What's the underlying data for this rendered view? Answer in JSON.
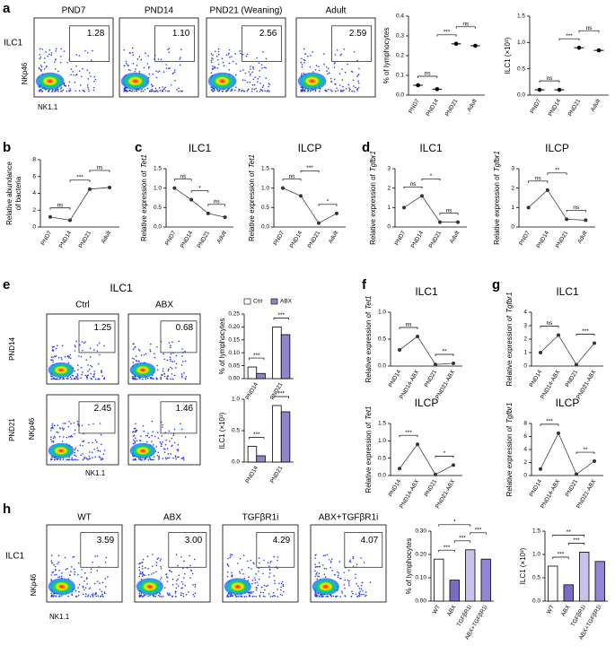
{
  "a": {
    "letter": "a",
    "gate_name": "ILC1",
    "y_marker": "NKp46",
    "x_marker": "NK1.1",
    "flows": [
      {
        "title": "PND7",
        "gate": "1.28"
      },
      {
        "title": "PND14",
        "gate": "1.10"
      },
      {
        "title": "PND21 (Weaning)",
        "gate": "2.56"
      },
      {
        "title": "Adult",
        "gate": "2.59"
      }
    ],
    "charts": [
      {
        "type": "dot",
        "ylabel": [
          "% of lymphocytes"
        ],
        "categories": [
          "PND7",
          "PND14",
          "PND21",
          "Adult"
        ],
        "values": [
          0.05,
          0.03,
          0.26,
          0.25
        ],
        "ylim": [
          0,
          0.4
        ],
        "yticks": [
          {
            "value": 0,
            "label": "0.0"
          },
          {
            "value": 0.1,
            "label": "0.1"
          },
          {
            "value": 0.2,
            "label": "0.2"
          },
          {
            "value": 0.3,
            "label": "0.3"
          },
          {
            "value": 0.4,
            "label": "0.4"
          }
        ],
        "sig": [
          {
            "from": 0,
            "to": 1,
            "label": "ns"
          },
          {
            "from": 1,
            "to": 2,
            "label": "***"
          },
          {
            "from": 2,
            "to": 3,
            "label": "ns"
          }
        ]
      },
      {
        "type": "dot",
        "ylabel": [
          "ILC1 (×10³)"
        ],
        "categories": [
          "PND7",
          "PND14",
          "PND21",
          "Adult"
        ],
        "values": [
          0.1,
          0.1,
          0.9,
          0.85
        ],
        "ylim": [
          0,
          1.5
        ],
        "yticks": [
          {
            "value": 0,
            "label": "0.0"
          },
          {
            "value": 0.5,
            "label": "0.5"
          },
          {
            "value": 1,
            "label": "1.0"
          },
          {
            "value": 1.5,
            "label": "1.5"
          }
        ],
        "sig": [
          {
            "from": 0,
            "to": 1,
            "label": "ns"
          },
          {
            "from": 1,
            "to": 2,
            "label": "***"
          },
          {
            "from": 2,
            "to": 3,
            "label": "ns"
          }
        ]
      }
    ]
  },
  "b": {
    "letter": "b",
    "charts": [
      {
        "type": "line",
        "ylabel": [
          "Relative abundance",
          "of bacteria"
        ],
        "categories": [
          "PND7",
          "PND14",
          "PND21",
          "Adult"
        ],
        "values": [
          1.2,
          0.8,
          4.5,
          4.7
        ],
        "ylim": [
          0,
          8
        ],
        "yticks": [
          0,
          2,
          4,
          6,
          8
        ],
        "sig": [
          {
            "from": 0,
            "to": 1,
            "label": "ns"
          },
          {
            "from": 1,
            "to": 2,
            "label": "***"
          },
          {
            "from": 2,
            "to": 3,
            "label": "ns"
          }
        ]
      }
    ]
  },
  "c": {
    "letter": "c",
    "charts": [
      {
        "type": "line",
        "title": "ILC1",
        "ylabel": [
          "Relative expression of"
        ],
        "gene": "Tet1",
        "categories": [
          "PND7",
          "PND14",
          "PND21",
          "Adult"
        ],
        "values": [
          1.0,
          0.7,
          0.35,
          0.25
        ],
        "ylim": [
          0,
          1.5
        ],
        "yticks": [
          {
            "value": 0,
            "label": "0.0"
          },
          {
            "value": 0.5,
            "label": "0.5"
          },
          {
            "value": 1,
            "label": "1.0"
          },
          {
            "value": 1.5,
            "label": "1.5"
          }
        ],
        "sig": [
          {
            "from": 0,
            "to": 1,
            "label": "ns"
          },
          {
            "from": 1,
            "to": 2,
            "label": "*"
          },
          {
            "from": 2,
            "to": 3,
            "label": "ns"
          }
        ]
      },
      {
        "type": "line",
        "title": "ILCP",
        "ylabel": [
          "Relative expression of"
        ],
        "gene": "Tet1",
        "categories": [
          "PND7",
          "PND14",
          "PND21",
          "Adult"
        ],
        "values": [
          1.0,
          0.8,
          0.1,
          0.35
        ],
        "ylim": [
          0,
          1.5
        ],
        "yticks": [
          {
            "value": 0,
            "label": "0.0"
          },
          {
            "value": 0.5,
            "label": "0.5"
          },
          {
            "value": 1,
            "label": "1.0"
          },
          {
            "value": 1.5,
            "label": "1.5"
          }
        ],
        "sig": [
          {
            "from": 0,
            "to": 1,
            "label": "ns"
          },
          {
            "from": 1,
            "to": 2,
            "label": "***"
          },
          {
            "from": 2,
            "to": 3,
            "label": "*"
          }
        ]
      }
    ]
  },
  "d": {
    "letter": "d",
    "charts": [
      {
        "type": "line",
        "title": "ILC1",
        "ylabel": [
          "Relative expression of"
        ],
        "gene": "Tgfbr1",
        "categories": [
          "PND7",
          "PND14",
          "PND21",
          "Adult"
        ],
        "values": [
          1.0,
          1.6,
          0.25,
          0.25
        ],
        "ylim": [
          0,
          3
        ],
        "yticks": [
          0,
          1,
          2,
          3
        ],
        "sig": [
          {
            "from": 0,
            "to": 1,
            "label": "ns"
          },
          {
            "from": 1,
            "to": 2,
            "label": "*"
          },
          {
            "from": 2,
            "to": 3,
            "label": "ns"
          }
        ]
      },
      {
        "type": "line",
        "title": "ILCP",
        "ylabel": [
          "Relative expression of"
        ],
        "gene": "Tgfbr1",
        "categories": [
          "PND7",
          "PND14",
          "PND21",
          "Adult"
        ],
        "values": [
          1.0,
          1.9,
          0.4,
          0.35
        ],
        "ylim": [
          0,
          3
        ],
        "yticks": [
          0,
          1,
          2,
          3
        ],
        "sig": [
          {
            "from": 0,
            "to": 1,
            "label": "ns"
          },
          {
            "from": 1,
            "to": 2,
            "label": "**"
          },
          {
            "from": 2,
            "to": 3,
            "label": "ns"
          }
        ]
      }
    ]
  },
  "e": {
    "letter": "e",
    "title": "ILC1",
    "columns": [
      "Ctrl",
      "ABX"
    ],
    "rows": [
      "PND14",
      "PND21"
    ],
    "y_marker": "NKp46",
    "x_marker": "NK1.1",
    "gates": [
      [
        "1.25",
        "0.68"
      ],
      [
        "2.45",
        "1.46"
      ]
    ],
    "charts": [
      {
        "type": "grouped_bar",
        "legend": "top",
        "ylabel": [
          "% of lymphocytes"
        ],
        "categories": [
          "PND14",
          "PND21"
        ],
        "series": [
          {
            "name": "Ctrl",
            "color": "#ffffff",
            "values": [
              0.045,
              0.2
            ]
          },
          {
            "name": "ABX",
            "color": "#8e86c9",
            "values": [
              0.02,
              0.17
            ]
          }
        ],
        "ylim": [
          0,
          0.25
        ],
        "yticks": [
          {
            "value": 0,
            "label": "0.00"
          },
          {
            "value": 0.05,
            "label": "0.05"
          },
          {
            "value": 0.1,
            "label": "0.10"
          },
          {
            "value": 0.15,
            "label": "0.15"
          },
          {
            "value": 0.2,
            "label": "0.20"
          },
          {
            "value": 0.25,
            "label": "0.25"
          }
        ],
        "sig": [
          {
            "at": 0,
            "label": "***"
          },
          {
            "at": 1,
            "label": "***"
          }
        ]
      },
      {
        "type": "grouped_bar",
        "ylabel": [
          "ILC1 (×10³)"
        ],
        "categories": [
          "PND14",
          "PND21"
        ],
        "series": [
          {
            "name": "Ctrl",
            "color": "#ffffff",
            "values": [
              0.25,
              0.9
            ]
          },
          {
            "name": "ABX",
            "color": "#8e86c9",
            "values": [
              0.1,
              0.8
            ]
          }
        ],
        "ylim": [
          0,
          1
        ],
        "yticks": [
          {
            "value": 0,
            "label": "0.0"
          },
          {
            "value": 0.5,
            "label": "0.5"
          },
          {
            "value": 1,
            "label": "1.0"
          }
        ],
        "sig": [
          {
            "at": 0,
            "label": "***"
          },
          {
            "at": 1,
            "label": "***"
          }
        ]
      }
    ]
  },
  "f": {
    "letter": "f",
    "charts": [
      {
        "type": "line",
        "title": "ILC1",
        "ylabel": [
          "Relative expression of"
        ],
        "gene": "Tet1",
        "categories": [
          "PND14",
          "PND14-ABX",
          "PND21",
          "PND21-ABX"
        ],
        "values": [
          0.3,
          0.55,
          0.03,
          0.05
        ],
        "ylim": [
          0,
          1
        ],
        "yticks": [
          {
            "value": 0,
            "label": "0.0"
          },
          {
            "value": 0.5,
            "label": "0.5"
          },
          {
            "value": 1,
            "label": "1.0"
          }
        ],
        "sig": [
          {
            "from": 0,
            "to": 1,
            "label": "ns"
          },
          {
            "from": 2,
            "to": 3,
            "label": "**"
          }
        ]
      },
      {
        "type": "line",
        "title": "ILCP",
        "ylabel": [
          "Relative expression of"
        ],
        "gene": "Tet1",
        "categories": [
          "PND14",
          "PND14-ABX",
          "PND21",
          "PND21-ABX"
        ],
        "values": [
          0.2,
          0.9,
          0.03,
          0.3
        ],
        "ylim": [
          0,
          1.5
        ],
        "yticks": [
          {
            "value": 0,
            "label": "0.0"
          },
          {
            "value": 0.5,
            "label": "0.5"
          },
          {
            "value": 1,
            "label": "1.0"
          },
          {
            "value": 1.5,
            "label": "1.5"
          }
        ],
        "sig": [
          {
            "from": 0,
            "to": 1,
            "label": "***"
          },
          {
            "from": 2,
            "to": 3,
            "label": "*"
          }
        ]
      }
    ]
  },
  "g": {
    "letter": "g",
    "charts": [
      {
        "type": "line",
        "title": "ILC1",
        "ylabel": [
          "Relative expression of"
        ],
        "gene": "Tgfbr1",
        "categories": [
          "PND14",
          "PND14-ABX",
          "PND21",
          "PND21-ABX"
        ],
        "values": [
          1.0,
          2.3,
          0.1,
          1.7
        ],
        "ylim": [
          0,
          4
        ],
        "yticks": [
          0,
          1,
          2,
          3,
          4
        ],
        "sig": [
          {
            "from": 0,
            "to": 1,
            "label": "ns"
          },
          {
            "from": 2,
            "to": 3,
            "label": "***"
          }
        ]
      },
      {
        "type": "line",
        "title": "ILCP",
        "ylabel": [
          "Relative expression of"
        ],
        "gene": "Tgfbr1",
        "categories": [
          "PND14",
          "PND14-ABX",
          "PND21",
          "PND21-ABX"
        ],
        "values": [
          1.0,
          6.5,
          0.2,
          2.2
        ],
        "ylim": [
          0,
          8
        ],
        "yticks": [
          0,
          2,
          4,
          6,
          8
        ],
        "sig": [
          {
            "from": 0,
            "to": 1,
            "label": "***"
          },
          {
            "from": 2,
            "to": 3,
            "label": "**"
          }
        ]
      }
    ]
  },
  "h": {
    "letter": "h",
    "gate_name": "ILC1",
    "y_marker": "NKp46",
    "x_marker": "NK1.1",
    "flows": [
      {
        "title": "WT",
        "gate": "3.59"
      },
      {
        "title": "ABX",
        "gate": "3.00"
      },
      {
        "title": "TGFβR1i",
        "gate": "4.29"
      },
      {
        "title": "ABX+TGFβR1i",
        "gate": "4.07"
      }
    ],
    "charts": [
      {
        "type": "bar",
        "ylabel": [
          "% of lymphocytes"
        ],
        "categories": [
          "WT",
          "ABX",
          "TGFβR1i",
          "ABX+TGFβR1i"
        ],
        "values": [
          0.18,
          0.09,
          0.22,
          0.18
        ],
        "colors": [
          "#ffffff",
          "#7a6cc6",
          "#c9c3ec",
          "#9486d6"
        ],
        "ylim": [
          0,
          0.3
        ],
        "yticks": [
          {
            "value": 0,
            "label": "0.00"
          },
          {
            "value": 0.1,
            "label": "0.10"
          },
          {
            "value": 0.2,
            "label": "0.20"
          },
          {
            "value": 0.3,
            "label": "0.30"
          }
        ],
        "sig": [
          {
            "from": 0,
            "to": 1,
            "label": "***"
          },
          {
            "from": 1,
            "to": 2,
            "label": "***"
          },
          {
            "from": 2,
            "to": 3,
            "label": "***"
          },
          {
            "from": 0,
            "to": 2,
            "label": "*"
          }
        ]
      },
      {
        "type": "bar",
        "ylabel": [
          "ILC1 (×10³)"
        ],
        "categories": [
          "WT",
          "ABX",
          "TGFβR1i",
          "ABX+TGFβR1i"
        ],
        "values": [
          0.75,
          0.35,
          1.05,
          0.85
        ],
        "colors": [
          "#ffffff",
          "#7a6cc6",
          "#c9c3ec",
          "#9486d6"
        ],
        "ylim": [
          0,
          1.5
        ],
        "yticks": [
          {
            "value": 0,
            "label": "0.0"
          },
          {
            "value": 0.5,
            "label": "0.5"
          },
          {
            "value": 1,
            "label": "1.0"
          },
          {
            "value": 1.5,
            "label": "1.5"
          }
        ],
        "sig": [
          {
            "from": 0,
            "to": 1,
            "label": "***"
          },
          {
            "from": 1,
            "to": 2,
            "label": "***"
          },
          {
            "from": 0,
            "to": 2,
            "label": "**"
          }
        ]
      }
    ]
  }
}
